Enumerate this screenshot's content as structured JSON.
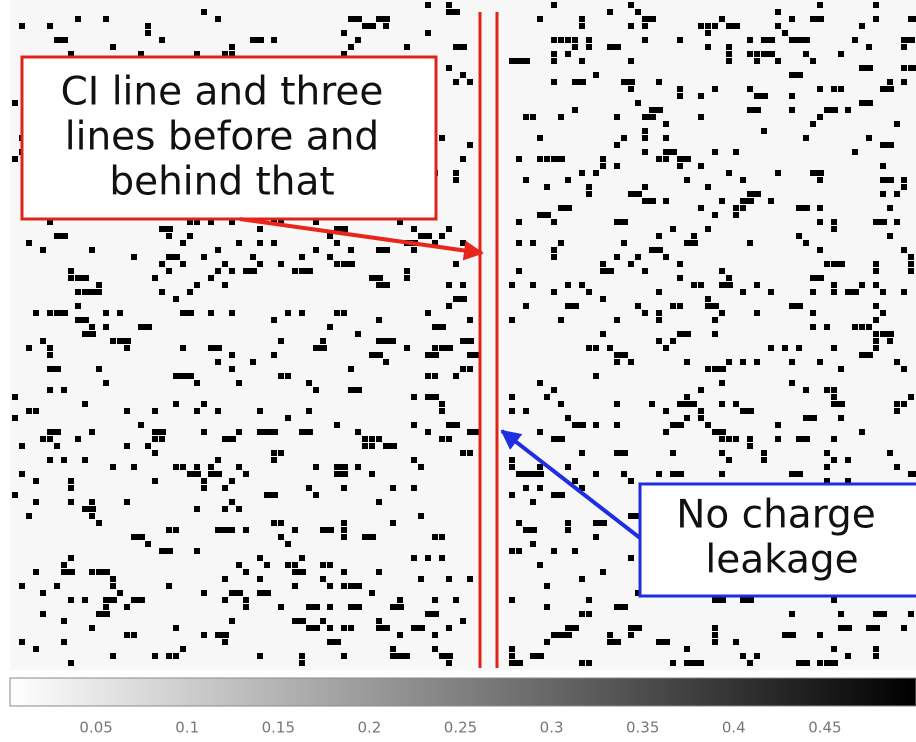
{
  "annotations": [
    {
      "lines": [
        "CI line and three",
        "lines before and",
        "behind that"
      ]
    },
    {
      "lines": [
        "No charge",
        "leakage"
      ]
    }
  ],
  "colorbar": {
    "range": [
      0,
      0.5
    ],
    "ticks": [
      0.05,
      0.1,
      0.15,
      0.2,
      0.25,
      0.3,
      0.35,
      0.4,
      0.45
    ]
  }
}
